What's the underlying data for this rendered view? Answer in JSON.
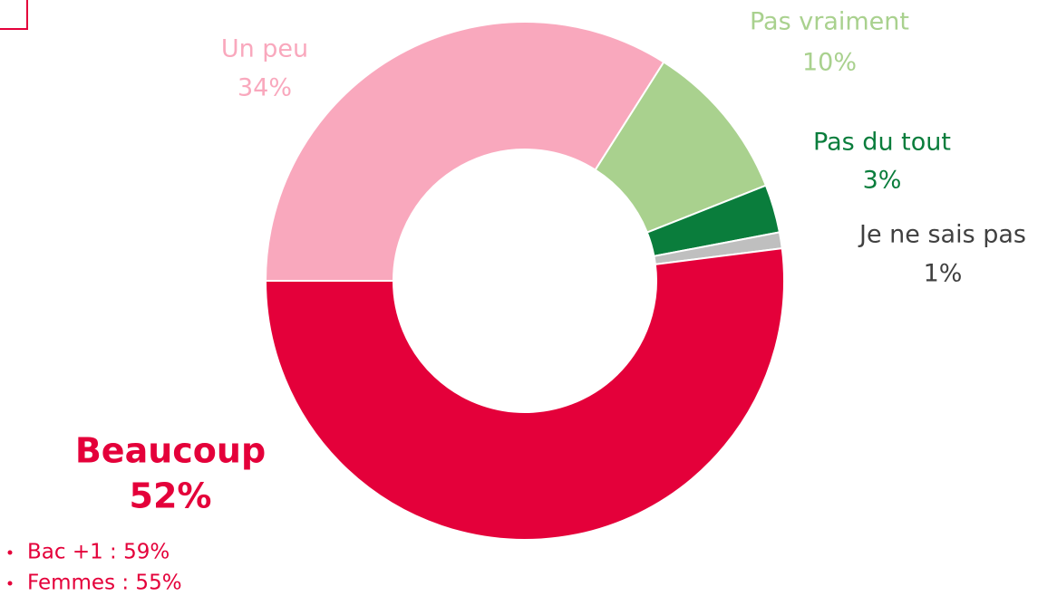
{
  "chart_data": {
    "type": "donut",
    "categories": [
      "Un peu",
      "Pas vraiment",
      "Pas du tout",
      "Je ne sais pas",
      "Beaucoup"
    ],
    "values": [
      34,
      10,
      3,
      1,
      52
    ],
    "value_labels": [
      "34%",
      "10%",
      "3%",
      "1%",
      "52%"
    ],
    "colors": [
      "#f9a8bd",
      "#a9d18e",
      "#0a7d3c",
      "#bfbfbf",
      "#e4003a"
    ],
    "annotations": [
      "Bac +1 : 59%",
      "Femmes : 55%"
    ]
  }
}
